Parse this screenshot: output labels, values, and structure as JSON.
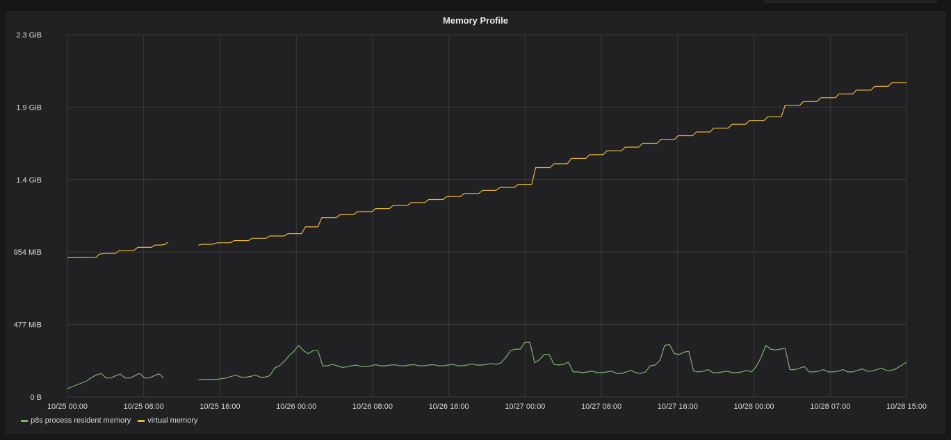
{
  "panel": {
    "title": "Memory Profile"
  },
  "colors": {
    "background": "#212124",
    "grid": "#3a3b3e",
    "rss": "#7eb26d",
    "virtual": "#eab839",
    "tick_text": "#d8d9da"
  },
  "chart_data": {
    "type": "line",
    "title": "Memory Profile",
    "xlabel": "",
    "ylabel": "",
    "grid": true,
    "legend_position": "bottom-left",
    "x_ticks": [
      "10/25 00:00",
      "10/25 08:00",
      "10/25 16:00",
      "10/26 00:00",
      "10/26 08:00",
      "10/26 16:00",
      "10/27 00:00",
      "10/27 08:00",
      "10/27 16:00",
      "10/28 00:00",
      "10/28 07:00",
      "10/28 15:00"
    ],
    "y_ticks": [
      "2.3 GiB",
      "1.9 GiB",
      "1.4 GiB",
      "954 MiB",
      "477 MiB",
      "0 B"
    ],
    "y_unit": "MiB",
    "ylim": [
      0,
      2385
    ],
    "xlim": [
      0,
      87.1
    ],
    "x_unit_note": "hours since 10/25 00:00",
    "series": [
      {
        "name": "p8s process resident memory",
        "color": "#7eb26d",
        "points": [
          [
            0,
            55
          ],
          [
            1,
            80
          ],
          [
            2,
            105
          ],
          [
            2.5,
            128
          ],
          [
            3,
            145
          ],
          [
            3.5,
            155
          ],
          [
            4,
            125
          ],
          [
            4.5,
            125
          ],
          [
            5,
            140
          ],
          [
            5.5,
            150
          ],
          [
            6,
            125
          ],
          [
            6.5,
            125
          ],
          [
            7,
            140
          ],
          [
            7.5,
            155
          ],
          [
            8,
            125
          ],
          [
            8.5,
            125
          ],
          [
            9,
            140
          ],
          [
            9.5,
            152
          ],
          [
            10,
            125
          ],
          null,
          [
            13.6,
            115
          ],
          [
            14.5,
            115
          ],
          [
            15.5,
            116
          ],
          [
            16.5,
            125
          ],
          [
            17.5,
            145
          ],
          [
            18,
            130
          ],
          [
            18.5,
            130
          ],
          [
            19,
            135
          ],
          [
            19.5,
            145
          ],
          [
            20,
            130
          ],
          [
            20.5,
            130
          ],
          [
            21,
            140
          ],
          [
            21.5,
            190
          ],
          [
            22,
            205
          ],
          [
            22.5,
            235
          ],
          [
            23,
            270
          ],
          [
            23.5,
            300
          ],
          [
            24,
            340
          ],
          [
            24.5,
            305
          ],
          [
            25,
            285
          ],
          [
            25.5,
            305
          ],
          [
            26,
            305
          ],
          [
            26.5,
            205
          ],
          [
            27,
            205
          ],
          [
            27.5,
            215
          ],
          [
            28,
            205
          ],
          [
            28.5,
            195
          ],
          [
            29,
            198
          ],
          [
            29.5,
            205
          ],
          [
            30,
            210
          ],
          [
            30.5,
            200
          ],
          [
            31,
            200
          ],
          [
            31.5,
            205
          ],
          [
            32,
            212
          ],
          [
            32.5,
            205
          ],
          [
            33,
            205
          ],
          [
            33.5,
            210
          ],
          [
            34,
            212
          ],
          [
            34.5,
            205
          ],
          [
            35,
            205
          ],
          [
            35.5,
            210
          ],
          [
            36,
            213
          ],
          [
            36.5,
            205
          ],
          [
            37,
            205
          ],
          [
            37.5,
            210
          ],
          [
            38,
            213
          ],
          [
            38.5,
            205
          ],
          [
            39,
            205
          ],
          [
            39.5,
            210
          ],
          [
            40,
            215
          ],
          [
            40.5,
            205
          ],
          [
            41,
            205
          ],
          [
            41.5,
            210
          ],
          [
            42,
            218
          ],
          [
            42.5,
            210
          ],
          [
            43,
            210
          ],
          [
            43.5,
            215
          ],
          [
            44,
            220
          ],
          [
            44.5,
            215
          ],
          [
            45,
            225
          ],
          [
            45.5,
            260
          ],
          [
            46,
            305
          ],
          [
            46.5,
            315
          ],
          [
            47,
            315
          ],
          [
            47.5,
            360
          ],
          [
            48,
            360
          ],
          [
            48.5,
            225
          ],
          [
            49,
            245
          ],
          [
            49.5,
            280
          ],
          [
            50,
            280
          ],
          [
            50.5,
            215
          ],
          [
            51,
            210
          ],
          [
            51.5,
            215
          ],
          [
            52,
            230
          ],
          [
            52.5,
            165
          ],
          [
            53,
            165
          ],
          [
            53.5,
            160
          ],
          [
            54,
            165
          ],
          [
            54.5,
            170
          ],
          [
            55,
            160
          ],
          [
            55.5,
            160
          ],
          [
            56,
            165
          ],
          [
            56.5,
            170
          ],
          [
            57,
            155
          ],
          [
            57.5,
            155
          ],
          [
            58,
            165
          ],
          [
            58.5,
            175
          ],
          [
            59,
            160
          ],
          [
            59.5,
            155
          ],
          [
            60,
            165
          ],
          [
            60.5,
            205
          ],
          [
            61,
            210
          ],
          [
            61.5,
            240
          ],
          [
            62,
            340
          ],
          [
            62.5,
            345
          ],
          [
            63,
            285
          ],
          [
            63.5,
            280
          ],
          [
            64,
            295
          ],
          [
            64.5,
            300
          ],
          [
            65,
            170
          ],
          [
            65.5,
            165
          ],
          [
            66,
            170
          ],
          [
            66.5,
            180
          ],
          [
            67,
            160
          ],
          [
            67.5,
            160
          ],
          [
            68,
            165
          ],
          [
            68.5,
            170
          ],
          [
            69,
            160
          ],
          [
            69.5,
            160
          ],
          [
            70,
            165
          ],
          [
            70.5,
            175
          ],
          [
            71,
            165
          ],
          [
            71.5,
            200
          ],
          [
            72,
            260
          ],
          [
            72.5,
            340
          ],
          [
            73,
            315
          ],
          [
            73.5,
            310
          ],
          [
            74,
            315
          ],
          [
            74.5,
            320
          ],
          [
            75,
            180
          ],
          [
            75.5,
            180
          ],
          [
            76,
            190
          ],
          [
            76.5,
            200
          ],
          [
            77,
            165
          ],
          [
            77.5,
            165
          ],
          [
            78,
            170
          ],
          [
            78.5,
            180
          ],
          [
            79,
            165
          ],
          [
            79.5,
            165
          ],
          [
            80,
            170
          ],
          [
            80.5,
            180
          ],
          [
            81,
            165
          ],
          [
            81.5,
            165
          ],
          [
            82,
            175
          ],
          [
            82.5,
            185
          ],
          [
            83,
            170
          ],
          [
            83.5,
            170
          ],
          [
            84,
            180
          ],
          [
            84.5,
            190
          ],
          [
            85,
            175
          ],
          [
            85.5,
            175
          ],
          [
            86,
            185
          ],
          [
            86.5,
            205
          ],
          [
            87.1,
            230
          ]
        ]
      },
      {
        "name": "virtual memory",
        "color": "#eab839",
        "points": [
          [
            0,
            918
          ],
          [
            3,
            920
          ],
          [
            3.3,
            940
          ],
          [
            3.8,
            945
          ],
          [
            5,
            945
          ],
          [
            5.4,
            965
          ],
          [
            6,
            965
          ],
          [
            6.9,
            965
          ],
          [
            7.3,
            985
          ],
          [
            7.8,
            985
          ],
          [
            8.7,
            985
          ],
          [
            9.1,
            1000
          ],
          [
            9.7,
            1000
          ],
          [
            10.2,
            1005
          ],
          [
            10.4,
            1020
          ],
          null,
          [
            13.6,
            1000
          ],
          [
            14,
            1005
          ],
          [
            15,
            1005
          ],
          [
            15.6,
            1015
          ],
          [
            16,
            1015
          ],
          [
            16.9,
            1015
          ],
          [
            17.3,
            1030
          ],
          [
            17.8,
            1030
          ],
          [
            18.8,
            1030
          ],
          [
            19.2,
            1045
          ],
          [
            19.7,
            1045
          ],
          [
            20.6,
            1045
          ],
          [
            21,
            1060
          ],
          [
            21.5,
            1060
          ],
          [
            22.5,
            1060
          ],
          [
            22.9,
            1075
          ],
          [
            23.4,
            1075
          ],
          [
            24.3,
            1075
          ],
          [
            24.7,
            1120
          ],
          [
            25.2,
            1120
          ],
          [
            26,
            1120
          ],
          [
            26.4,
            1180
          ],
          [
            26.9,
            1180
          ],
          [
            27.9,
            1180
          ],
          [
            28.3,
            1200
          ],
          [
            28.8,
            1200
          ],
          [
            29.7,
            1200
          ],
          [
            30.1,
            1220
          ],
          [
            30.6,
            1220
          ],
          [
            31.6,
            1220
          ],
          [
            32,
            1240
          ],
          [
            32.5,
            1240
          ],
          [
            33.4,
            1240
          ],
          [
            33.8,
            1260
          ],
          [
            34.3,
            1260
          ],
          [
            35.3,
            1260
          ],
          [
            35.7,
            1280
          ],
          [
            36.2,
            1280
          ],
          [
            37.1,
            1280
          ],
          [
            37.5,
            1300
          ],
          [
            38,
            1300
          ],
          [
            39,
            1300
          ],
          [
            39.4,
            1320
          ],
          [
            39.9,
            1320
          ],
          [
            40.8,
            1320
          ],
          [
            41.2,
            1340
          ],
          [
            41.7,
            1340
          ],
          [
            42.7,
            1340
          ],
          [
            43.1,
            1360
          ],
          [
            43.6,
            1360
          ],
          [
            44.5,
            1360
          ],
          [
            44.9,
            1380
          ],
          [
            45.4,
            1380
          ],
          [
            46.4,
            1380
          ],
          [
            46.8,
            1400
          ],
          [
            47.3,
            1400
          ],
          [
            48.2,
            1400
          ],
          [
            48.6,
            1510
          ],
          [
            49.1,
            1510
          ],
          [
            50.1,
            1510
          ],
          [
            50.5,
            1535
          ],
          [
            51,
            1535
          ],
          [
            51.9,
            1535
          ],
          [
            52.3,
            1570
          ],
          [
            52.8,
            1570
          ],
          [
            53.8,
            1570
          ],
          [
            54.2,
            1595
          ],
          [
            54.7,
            1595
          ],
          [
            55.6,
            1595
          ],
          [
            56,
            1620
          ],
          [
            56.5,
            1620
          ],
          [
            57.5,
            1620
          ],
          [
            57.9,
            1645
          ],
          [
            58.4,
            1645
          ],
          [
            59.3,
            1645
          ],
          [
            59.7,
            1670
          ],
          [
            60.2,
            1670
          ],
          [
            61.2,
            1670
          ],
          [
            61.6,
            1695
          ],
          [
            62.1,
            1695
          ],
          [
            63,
            1695
          ],
          [
            63.4,
            1720
          ],
          [
            63.9,
            1720
          ],
          [
            64.9,
            1720
          ],
          [
            65.3,
            1745
          ],
          [
            65.8,
            1745
          ],
          [
            66.7,
            1745
          ],
          [
            67.1,
            1770
          ],
          [
            67.6,
            1770
          ],
          [
            68.6,
            1770
          ],
          [
            69,
            1795
          ],
          [
            69.5,
            1795
          ],
          [
            70.4,
            1795
          ],
          [
            70.8,
            1820
          ],
          [
            71.3,
            1820
          ],
          [
            72.3,
            1820
          ],
          [
            72.7,
            1845
          ],
          [
            73.2,
            1845
          ],
          [
            74.1,
            1845
          ],
          [
            74.5,
            1920
          ],
          [
            75,
            1920
          ],
          [
            76,
            1920
          ],
          [
            76.4,
            1945
          ],
          [
            76.9,
            1945
          ],
          [
            77.8,
            1945
          ],
          [
            78.2,
            1970
          ],
          [
            78.7,
            1970
          ],
          [
            79.7,
            1970
          ],
          [
            80.1,
            1995
          ],
          [
            80.6,
            1995
          ],
          [
            81.5,
            1995
          ],
          [
            81.9,
            2020
          ],
          [
            82.4,
            2020
          ],
          [
            83.4,
            2020
          ],
          [
            83.8,
            2045
          ],
          [
            84.3,
            2045
          ],
          [
            85.2,
            2045
          ],
          [
            85.6,
            2070
          ],
          [
            86.1,
            2070
          ],
          [
            87.1,
            2070
          ]
        ]
      }
    ]
  }
}
